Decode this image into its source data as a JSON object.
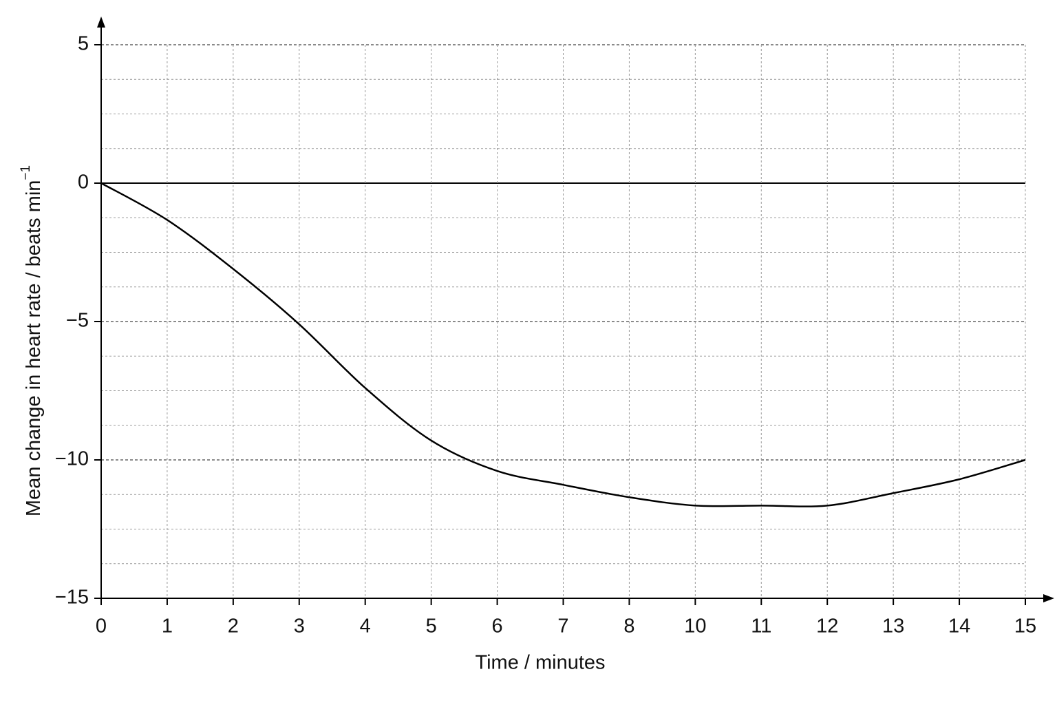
{
  "chart_data": {
    "type": "line",
    "x_label": "Time / minutes",
    "y_label": "Mean change in heart rate / beats min",
    "y_label_superscript": "−1",
    "categories": [
      "0",
      "1",
      "2",
      "3",
      "4",
      "5",
      "6",
      "7",
      "8",
      "10",
      "11",
      "12",
      "13",
      "14",
      "15"
    ],
    "series": [
      {
        "color": "#000000",
        "values": [
          0,
          -1.33,
          -3.1,
          -5.1,
          -7.4,
          -9.3,
          -10.4,
          -10.9,
          -11.35,
          -11.65,
          -11.65,
          -11.65,
          -11.2,
          -10.7,
          -10
        ]
      }
    ],
    "ylim": [
      -15,
      5
    ],
    "yticks": [
      {
        "value": -15,
        "label": "−15"
      },
      {
        "value": -10,
        "label": "−10"
      },
      {
        "value": -5,
        "label": "−5"
      },
      0,
      5
    ],
    "grid": true
  }
}
